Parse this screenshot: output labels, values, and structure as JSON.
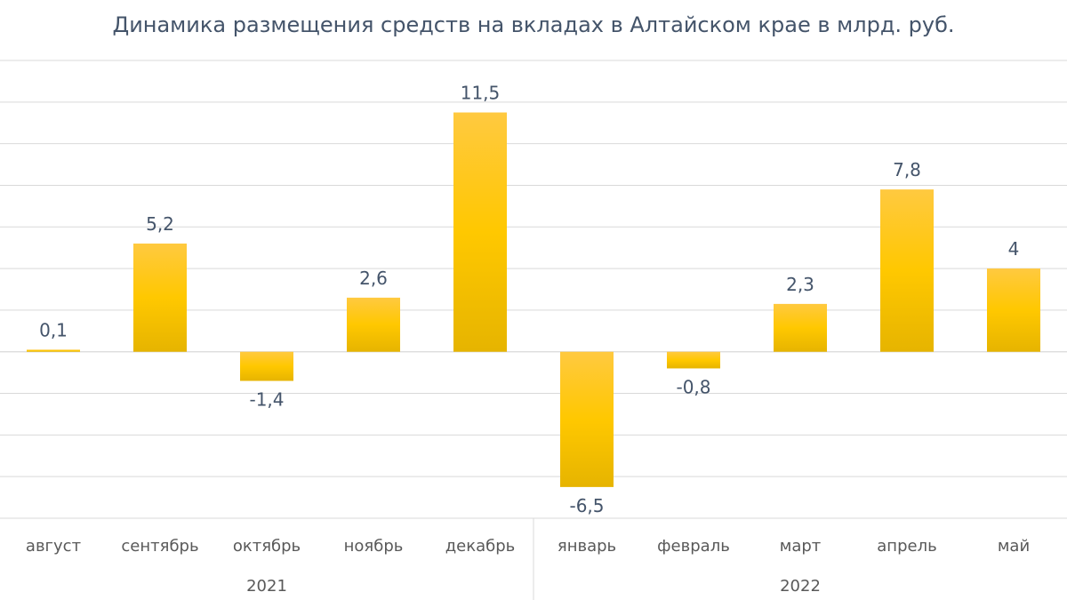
{
  "chart_data": {
    "type": "bar",
    "title": "Динамика размещения средств на вкладах в Алтайском крае в млрд. руб.",
    "categories": [
      "август",
      "сентябрь",
      "октябрь",
      "ноябрь",
      "декабрь",
      "январь",
      "февраль",
      "март",
      "апрель",
      "май"
    ],
    "value_labels": [
      "0,1",
      "5,2",
      "-1,4",
      "2,6",
      "11,5",
      "-6,5",
      "-0,8",
      "2,3",
      "7,8",
      "4"
    ],
    "values": [
      0.1,
      5.2,
      -1.4,
      2.6,
      11.5,
      -6.5,
      -0.8,
      2.3,
      7.8,
      4
    ],
    "groups": [
      {
        "label": "2021",
        "count": 5
      },
      {
        "label": "2022",
        "count": 5
      }
    ],
    "ylim": [
      -8,
      14
    ],
    "grid": true,
    "gradient_colors": [
      "#ffc940",
      "#ffc800",
      "#e6b400"
    ]
  }
}
